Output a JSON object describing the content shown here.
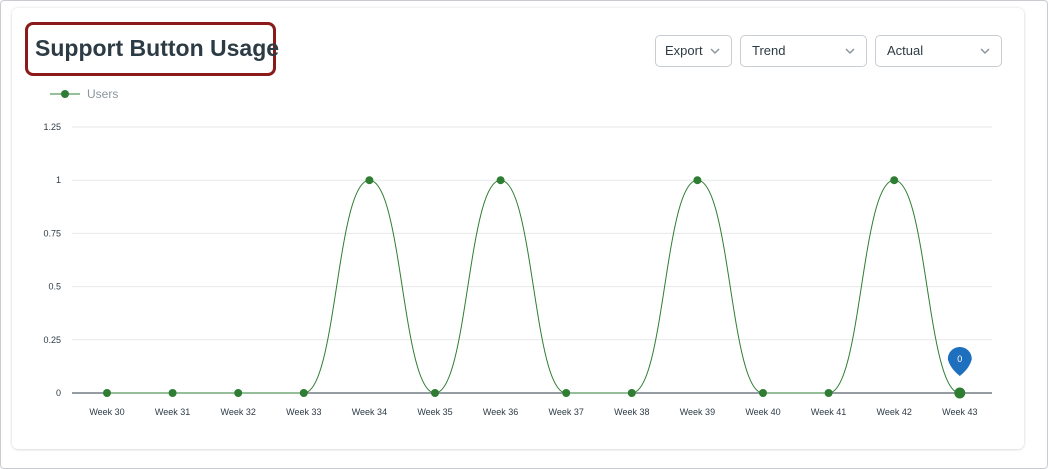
{
  "title": "Support Button Usage",
  "controls": {
    "export_label": "Export",
    "trend_label": "Trend",
    "actual_label": "Actual"
  },
  "colors": {
    "series": "#2e7d32",
    "tooltip": "#1f6fbf",
    "title_highlight": "#8b1a1a"
  },
  "chart_data": {
    "type": "line",
    "title": "Support Button Usage",
    "xlabel": "",
    "ylabel": "",
    "categories": [
      "Week 30",
      "Week 31",
      "Week 32",
      "Week 33",
      "Week 34",
      "Week 35",
      "Week 36",
      "Week 37",
      "Week 38",
      "Week 39",
      "Week 40",
      "Week 41",
      "Week 42",
      "Week 43"
    ],
    "series": [
      {
        "name": "Users",
        "values": [
          0,
          0,
          0,
          0,
          1,
          0,
          1,
          0,
          0,
          1,
          0,
          0,
          1,
          0
        ]
      }
    ],
    "ylim": [
      0,
      1.25
    ],
    "yticks": [
      "0",
      "0.25",
      "0.5",
      "0.75",
      "1",
      "1.25"
    ],
    "grid": true,
    "smooth": true,
    "legend": "top-left",
    "tooltip": {
      "category": "Week 43",
      "value": "0"
    }
  }
}
